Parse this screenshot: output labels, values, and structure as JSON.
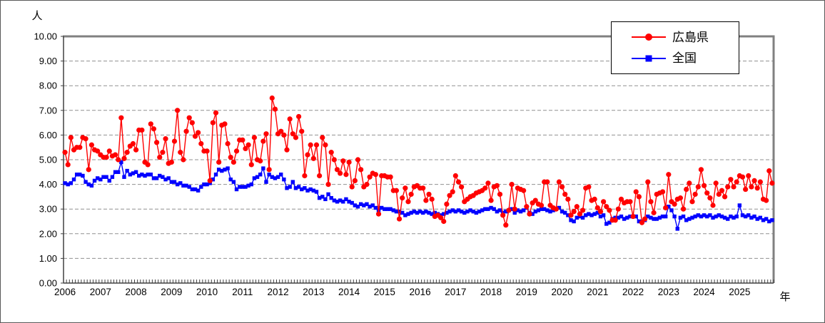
{
  "figure": {
    "y_unit_label": "人",
    "x_unit_label": "年"
  },
  "legend": {
    "position": "top-right",
    "items": [
      {
        "label": "広島県",
        "color": "#FF0000",
        "marker": "circle"
      },
      {
        "label": "全国",
        "color": "#0000FF",
        "marker": "square"
      }
    ]
  },
  "chart_data": {
    "type": "line",
    "title": "",
    "ylabel": "人",
    "xlabel": "年",
    "frequency": "monthly",
    "x_range": "2006-01 to 2025-12",
    "ylim": [
      0,
      10
    ],
    "grid": "horizontal dashed gridlines every 1.00",
    "legend_position": "top-right",
    "y_tick_labels": [
      "0.00",
      "1.00",
      "2.00",
      "3.00",
      "4.00",
      "5.00",
      "6.00",
      "7.00",
      "8.00",
      "9.00",
      "10.00"
    ],
    "x_tick_labels": [
      "2006",
      "2007",
      "2008",
      "2009",
      "2010",
      "2011",
      "2012",
      "2013",
      "2014",
      "2015",
      "2016",
      "2017",
      "2018",
      "2019",
      "2020",
      "2021",
      "2022",
      "2023",
      "2024",
      "2025"
    ],
    "series": [
      {
        "name": "広島県",
        "color": "#FF0000",
        "marker": "circle",
        "values": [
          5.3,
          4.8,
          5.9,
          5.4,
          5.5,
          5.5,
          5.9,
          5.85,
          4.6,
          5.6,
          5.4,
          5.35,
          5.2,
          5.1,
          5.1,
          5.35,
          5.15,
          5.2,
          5.0,
          6.7,
          5.05,
          5.3,
          5.55,
          5.65,
          5.4,
          6.2,
          6.2,
          4.9,
          4.8,
          6.45,
          6.25,
          5.7,
          5.1,
          5.3,
          5.85,
          4.85,
          4.9,
          5.75,
          7.0,
          5.3,
          5.0,
          6.15,
          6.7,
          6.5,
          5.95,
          6.1,
          5.65,
          5.35,
          5.35,
          4.15,
          6.5,
          6.9,
          4.9,
          6.4,
          6.45,
          5.65,
          5.1,
          4.9,
          5.35,
          5.8,
          5.8,
          5.45,
          5.6,
          4.8,
          5.9,
          5.0,
          4.95,
          5.75,
          6.05,
          4.6,
          7.5,
          7.05,
          6.05,
          6.15,
          6.0,
          5.4,
          6.65,
          6.05,
          5.9,
          6.75,
          6.15,
          4.35,
          5.2,
          5.6,
          5.05,
          5.6,
          4.35,
          5.9,
          5.6,
          4.0,
          5.3,
          5.0,
          4.6,
          4.45,
          4.95,
          4.4,
          4.9,
          3.9,
          4.15,
          5.0,
          4.6,
          3.9,
          4.0,
          4.3,
          4.45,
          4.4,
          2.8,
          4.35,
          4.35,
          4.3,
          4.3,
          3.75,
          3.75,
          2.6,
          3.45,
          3.85,
          3.3,
          3.6,
          3.9,
          3.95,
          3.85,
          3.85,
          3.35,
          3.6,
          3.4,
          2.7,
          2.75,
          2.65,
          2.5,
          3.2,
          3.55,
          3.7,
          4.35,
          4.1,
          3.9,
          3.3,
          3.4,
          3.5,
          3.55,
          3.65,
          3.7,
          3.75,
          3.85,
          4.05,
          3.35,
          3.9,
          3.95,
          3.6,
          2.75,
          2.35,
          2.95,
          4.0,
          3.0,
          3.85,
          3.8,
          3.75,
          3.1,
          2.8,
          3.25,
          3.35,
          3.2,
          3.15,
          4.1,
          4.1,
          3.15,
          3.05,
          3.0,
          4.1,
          3.9,
          3.6,
          3.4,
          2.75,
          2.9,
          3.1,
          2.8,
          2.95,
          3.85,
          3.9,
          3.35,
          3.4,
          3.05,
          2.9,
          3.3,
          3.1,
          2.95,
          2.55,
          2.55,
          3.0,
          3.4,
          3.25,
          3.3,
          3.3,
          2.7,
          3.7,
          3.5,
          2.45,
          2.6,
          4.1,
          3.3,
          2.85,
          3.6,
          3.65,
          3.7,
          3.05,
          4.4,
          3.3,
          3.2,
          3.4,
          3.45,
          3.0,
          3.8,
          4.05,
          3.3,
          3.6,
          3.9,
          4.6,
          3.95,
          3.65,
          3.45,
          3.15,
          4.05,
          3.6,
          3.75,
          3.5,
          3.9,
          4.2,
          3.9,
          4.1,
          4.35,
          4.3,
          3.8,
          4.35,
          3.9,
          4.15,
          3.85,
          4.1,
          3.4,
          3.35,
          4.55,
          4.05
        ]
      },
      {
        "name": "全国",
        "color": "#0000FF",
        "marker": "square",
        "values": [
          4.05,
          4.0,
          4.05,
          4.2,
          4.4,
          4.4,
          4.35,
          4.1,
          4.0,
          3.95,
          4.15,
          4.25,
          4.2,
          4.3,
          4.3,
          4.15,
          4.3,
          4.5,
          4.5,
          4.9,
          4.3,
          4.55,
          4.4,
          4.45,
          4.5,
          4.35,
          4.4,
          4.35,
          4.4,
          4.4,
          4.25,
          4.25,
          4.35,
          4.3,
          4.2,
          4.25,
          4.1,
          4.1,
          4.0,
          4.05,
          3.95,
          3.95,
          3.9,
          3.8,
          3.8,
          3.75,
          3.9,
          4.0,
          4.0,
          4.05,
          4.2,
          4.4,
          4.6,
          4.55,
          4.6,
          4.65,
          4.2,
          4.1,
          3.8,
          3.9,
          3.9,
          3.9,
          3.95,
          4.0,
          4.25,
          4.3,
          4.4,
          4.65,
          4.1,
          4.4,
          4.3,
          4.25,
          4.3,
          4.4,
          4.2,
          3.85,
          3.9,
          4.1,
          3.85,
          3.9,
          3.8,
          3.85,
          3.75,
          3.8,
          3.75,
          3.7,
          3.45,
          3.5,
          3.4,
          3.6,
          3.45,
          3.35,
          3.3,
          3.35,
          3.3,
          3.4,
          3.3,
          3.25,
          3.15,
          3.1,
          3.2,
          3.15,
          3.2,
          3.1,
          3.15,
          3.05,
          2.95,
          3.05,
          3.0,
          3.0,
          3.0,
          2.95,
          2.9,
          2.9,
          2.85,
          2.75,
          2.8,
          2.85,
          2.9,
          2.85,
          2.9,
          2.85,
          2.9,
          2.85,
          2.8,
          2.85,
          2.8,
          2.75,
          2.8,
          2.85,
          2.9,
          2.95,
          2.9,
          2.95,
          2.9,
          2.85,
          2.9,
          2.95,
          2.9,
          2.85,
          2.9,
          2.95,
          3.0,
          3.0,
          3.05,
          3.0,
          2.9,
          2.95,
          2.85,
          2.9,
          2.95,
          3.0,
          2.85,
          2.95,
          2.9,
          2.95,
          3.05,
          2.85,
          2.8,
          2.9,
          2.95,
          3.0,
          3.0,
          2.95,
          2.9,
          2.95,
          3.0,
          3.05,
          2.9,
          2.85,
          2.75,
          2.55,
          2.5,
          2.65,
          2.7,
          2.65,
          2.75,
          2.8,
          2.75,
          2.8,
          2.85,
          2.7,
          2.75,
          2.4,
          2.45,
          2.6,
          2.65,
          2.65,
          2.7,
          2.6,
          2.65,
          2.7,
          2.7,
          2.7,
          2.5,
          2.5,
          2.55,
          2.7,
          2.65,
          2.6,
          2.6,
          2.65,
          2.7,
          2.7,
          3.1,
          2.95,
          2.7,
          2.2,
          2.65,
          2.7,
          2.55,
          2.6,
          2.65,
          2.7,
          2.75,
          2.7,
          2.75,
          2.7,
          2.75,
          2.65,
          2.7,
          2.75,
          2.7,
          2.65,
          2.6,
          2.7,
          2.65,
          2.7,
          3.15,
          2.75,
          2.7,
          2.75,
          2.65,
          2.7,
          2.6,
          2.65,
          2.55,
          2.6,
          2.5,
          2.55
        ]
      }
    ]
  }
}
